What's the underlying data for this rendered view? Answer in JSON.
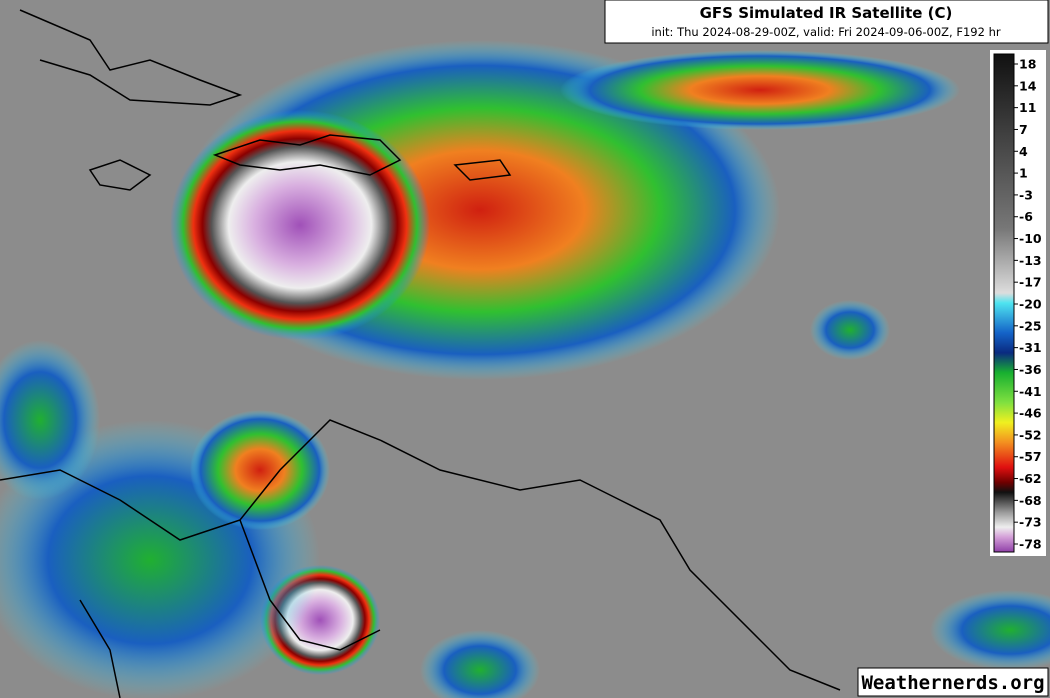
{
  "header": {
    "title": "GFS Simulated IR Satellite (C)",
    "subtitle": "init: Thu 2024-08-29-00Z, valid: Fri 2024-09-06-00Z, F192 hr"
  },
  "colorbar": {
    "ticks": [
      18,
      14,
      11,
      7,
      4,
      1,
      -3,
      -6,
      -10,
      -13,
      -17,
      -20,
      -25,
      -31,
      -36,
      -41,
      -46,
      -52,
      -57,
      -62,
      -68,
      -73,
      -78
    ]
  },
  "watermark": "Weathernerds.org"
}
